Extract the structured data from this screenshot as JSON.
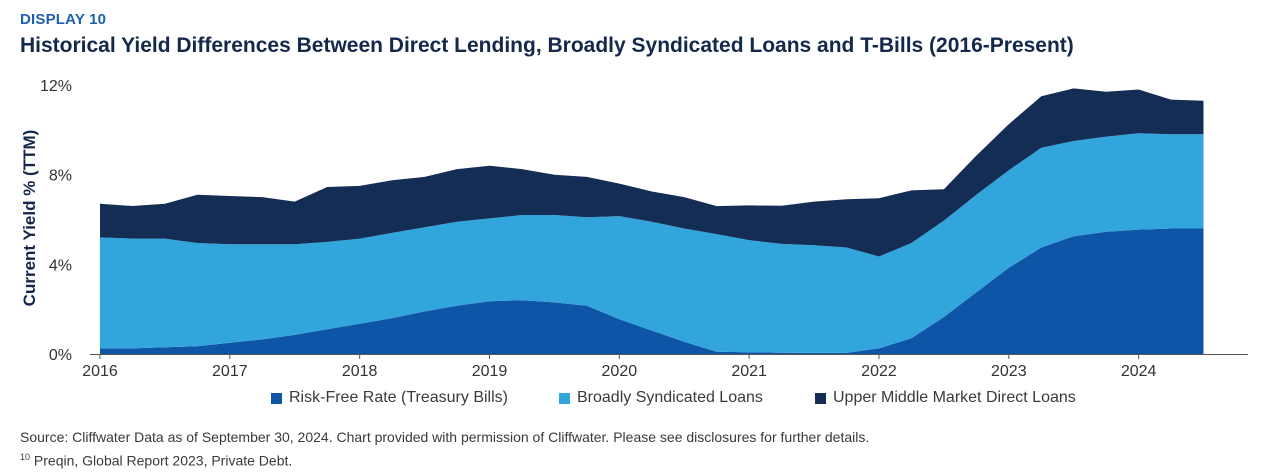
{
  "header": {
    "display_label": "DISPLAY 10",
    "title": "Historical Yield Differences Between Direct Lending, Broadly Syndicated Loans and T-Bills (2016-Present)"
  },
  "chart_data": {
    "type": "area",
    "stacked": true,
    "ylabel": "Current Yield % (TTM)",
    "xlabel": "",
    "ylim": [
      0,
      12
    ],
    "xlim": [
      2016.0,
      2024.75
    ],
    "y_ticks": [
      "0%",
      "4%",
      "8%",
      "12%"
    ],
    "x_ticks": [
      "2016",
      "2017",
      "2018",
      "2019",
      "2020",
      "2021",
      "2022",
      "2023",
      "2024"
    ],
    "grid": false,
    "legend_position": "bottom",
    "x": [
      2016.0,
      2016.25,
      2016.5,
      2016.75,
      2017.0,
      2017.25,
      2017.5,
      2017.75,
      2018.0,
      2018.25,
      2018.5,
      2018.75,
      2019.0,
      2019.25,
      2019.5,
      2019.75,
      2020.0,
      2020.25,
      2020.5,
      2020.75,
      2021.0,
      2021.25,
      2021.5,
      2021.75,
      2022.0,
      2022.25,
      2022.5,
      2022.75,
      2023.0,
      2023.25,
      2023.5,
      2023.75,
      2024.0,
      2024.25,
      2024.5
    ],
    "series": [
      {
        "name": "Risk-Free Rate (Treasury Bills)",
        "color": "#0f55a7",
        "values": [
          0.25,
          0.25,
          0.3,
          0.35,
          0.5,
          0.65,
          0.85,
          1.1,
          1.35,
          1.6,
          1.9,
          2.15,
          2.35,
          2.4,
          2.3,
          2.15,
          1.55,
          1.05,
          0.55,
          0.1,
          0.08,
          0.06,
          0.05,
          0.05,
          0.25,
          0.7,
          1.65,
          2.75,
          3.85,
          4.75,
          5.25,
          5.45,
          5.55,
          5.6,
          5.6
        ]
      },
      {
        "name": "Broadly Syndicated Loans",
        "color": "#33a5dd",
        "values": [
          4.95,
          4.9,
          4.85,
          4.6,
          4.4,
          4.25,
          4.05,
          3.9,
          3.8,
          3.8,
          3.75,
          3.75,
          3.7,
          3.8,
          3.9,
          3.95,
          4.6,
          4.85,
          5.05,
          5.25,
          5.0,
          4.85,
          4.8,
          4.7,
          4.1,
          4.25,
          4.3,
          4.35,
          4.35,
          4.45,
          4.25,
          4.25,
          4.3,
          4.2,
          4.2
        ]
      },
      {
        "name": "Upper Middle Market Direct Loans",
        "color": "#142d55",
        "values": [
          1.5,
          1.45,
          1.55,
          2.15,
          2.15,
          2.1,
          1.9,
          2.45,
          2.35,
          2.35,
          2.25,
          2.35,
          2.35,
          2.05,
          1.8,
          1.8,
          1.45,
          1.35,
          1.4,
          1.25,
          1.55,
          1.7,
          1.95,
          2.15,
          2.6,
          2.35,
          1.4,
          1.75,
          2.05,
          2.3,
          2.35,
          2.0,
          1.95,
          1.55,
          1.5
        ]
      }
    ]
  }
}
